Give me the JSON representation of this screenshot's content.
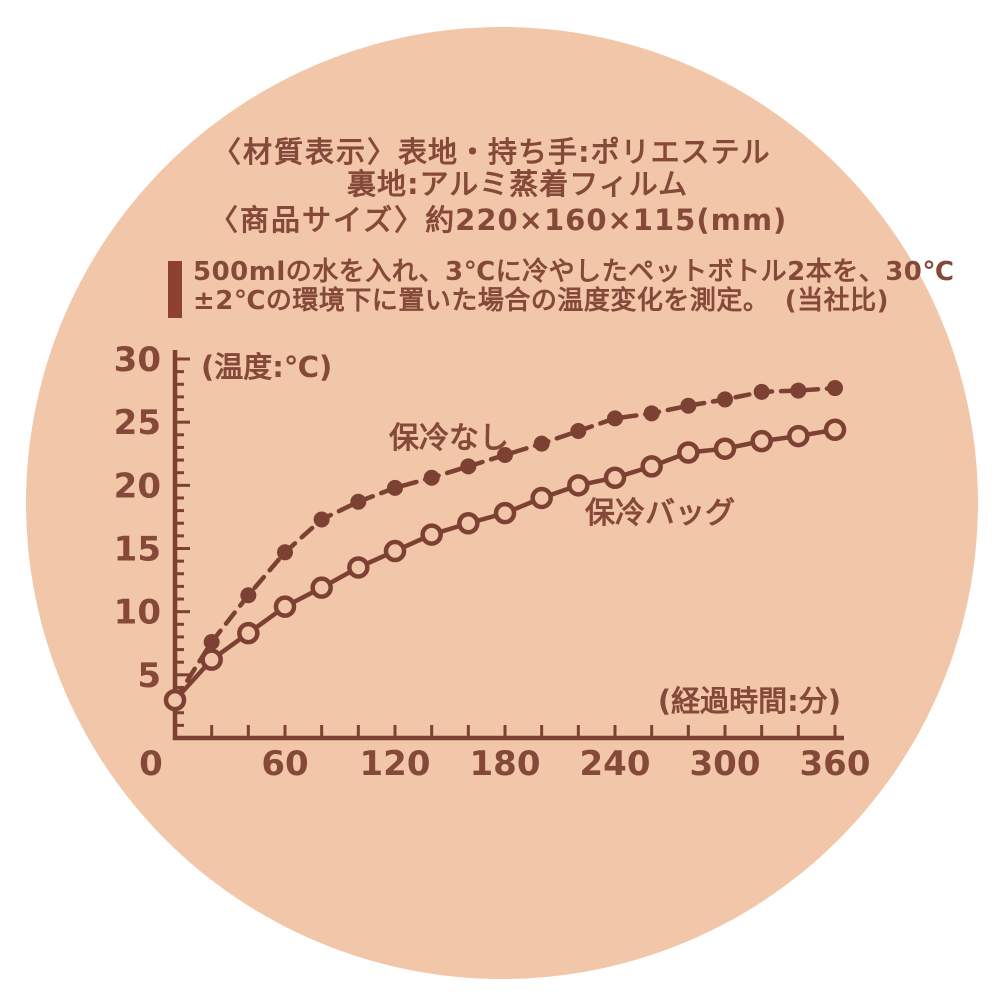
{
  "colors": {
    "page_background": "#ffffff",
    "circle_fill": "#f2c6a8",
    "ink": "#85493a",
    "chart": "#7c4133",
    "accent_bar": "#8e4130"
  },
  "spec": {
    "material_label": "〈材質表示〉",
    "material_line1": "表地・持ち手:ポリエステル",
    "material_line2": "裏地:アルミ蒸着フィルム",
    "size_label": "〈商品サイズ〉",
    "size_value": "約220×160×115(mm)"
  },
  "test_note": {
    "line1": "500mlの水を入れ、3℃に冷やしたペットボトル2本を、30℃",
    "line2": "±2℃の環境下に置いた場合の温度変化を測定。",
    "line2_suffix": "(当社比)"
  },
  "chart_data": {
    "type": "line",
    "title": "",
    "xlabel": "(経過時間:分)",
    "ylabel": "(温度:℃)",
    "xlim": [
      0,
      360
    ],
    "ylim": [
      0,
      30
    ],
    "x_tick_step": 20,
    "x_label_step": 60,
    "y_tick_step": 1,
    "y_label_step": 5,
    "grid": false,
    "legend_position": "inline-annotations",
    "x": [
      0,
      20,
      40,
      60,
      80,
      100,
      120,
      140,
      160,
      180,
      200,
      220,
      240,
      260,
      280,
      300,
      320,
      340,
      360
    ],
    "series": [
      {
        "name": "保冷なし",
        "line_style": "dashed",
        "marker": "filled-circle",
        "values": [
          3.0,
          7.6,
          11.3,
          14.7,
          17.3,
          18.7,
          19.8,
          20.6,
          21.5,
          22.4,
          23.3,
          24.3,
          25.3,
          25.7,
          26.3,
          26.8,
          27.4,
          27.5,
          27.7
        ]
      },
      {
        "name": "保冷バッグ",
        "line_style": "solid",
        "marker": "open-circle",
        "values": [
          3.0,
          6.2,
          8.3,
          10.4,
          11.9,
          13.5,
          14.8,
          16.1,
          17.0,
          17.8,
          19.0,
          20.0,
          20.6,
          21.5,
          22.6,
          22.9,
          23.5,
          23.9,
          24.4
        ]
      }
    ]
  }
}
